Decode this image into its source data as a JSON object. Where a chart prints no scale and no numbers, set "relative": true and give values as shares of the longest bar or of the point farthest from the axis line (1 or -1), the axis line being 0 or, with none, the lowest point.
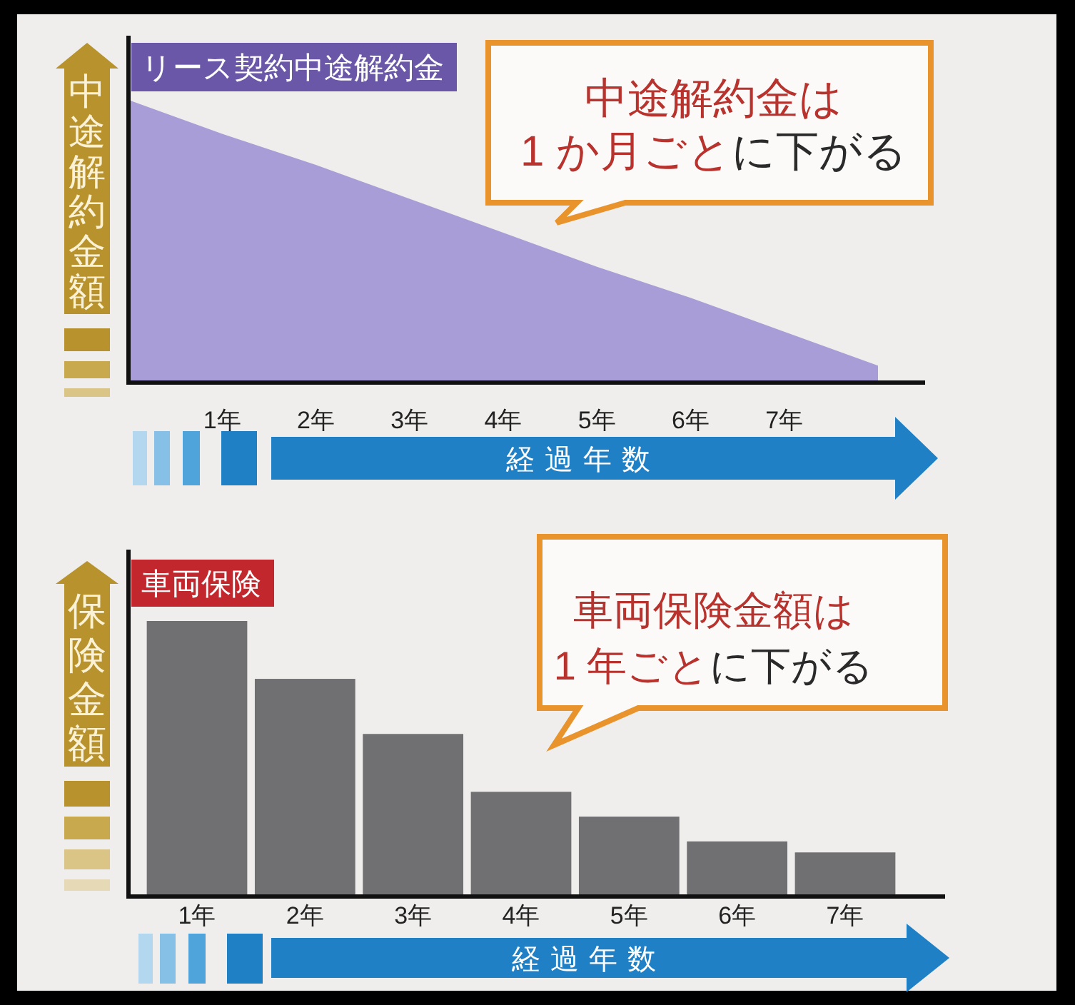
{
  "chart_data": [
    {
      "type": "area",
      "title": "リース契約中途解約金",
      "ylabel": "中途解約金額",
      "xlabel": "経過年数",
      "relative": true,
      "categories": [
        null,
        "1年",
        "2年",
        "3年",
        "4年",
        "5年",
        "6年",
        "7年",
        null
      ],
      "values": [
        1,
        0.88,
        0.77,
        0.65,
        0.53,
        0.41,
        0.3,
        0.18,
        0.06
      ],
      "color": "#a99dd7",
      "annotations": [
        "中途解約金は",
        "1 か月ごと",
        "に下がる"
      ]
    },
    {
      "type": "bar",
      "title": "車両保険",
      "ylabel": "保険金額",
      "xlabel": "経過年数",
      "relative": true,
      "categories": [
        "1年",
        "2年",
        "3年",
        "4年",
        "5年",
        "6年",
        "7年"
      ],
      "values": [
        1,
        0.79,
        0.59,
        0.38,
        0.29,
        0.2,
        0.16
      ],
      "color": "#707072",
      "annotations": [
        "車両保険金額は",
        "1 年ごと",
        "に下がる"
      ]
    }
  ]
}
